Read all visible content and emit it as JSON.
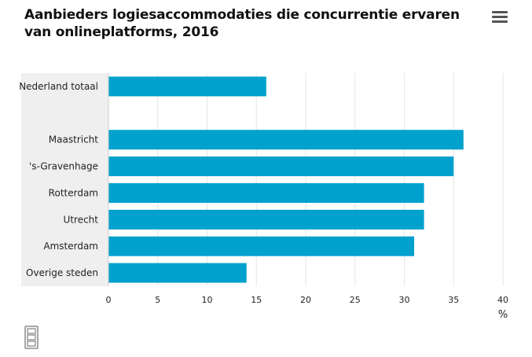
{
  "title": "Aanbieders logiesaccommodaties die concurrentie ervaren van onlineplatforms, 2016",
  "icons": {
    "menu": "hamburger-menu-icon",
    "logo": "cbs-logo-icon"
  },
  "colors": {
    "bar": "#00a1cd",
    "label_panel": "#efefef",
    "grid": "#e6e6e6"
  },
  "chart_data": {
    "type": "bar",
    "orientation": "horizontal",
    "categories": [
      "Nederland totaal",
      "",
      "Maastricht",
      "'s-Gravenhage",
      "Rotterdam",
      "Utrecht",
      "Amsterdam",
      "Overige steden"
    ],
    "values": [
      16,
      null,
      36,
      35,
      32,
      32,
      31,
      14
    ],
    "xlim": [
      0,
      40
    ],
    "xticks": [
      "0",
      "5",
      "10",
      "15",
      "20",
      "25",
      "30",
      "35",
      "40"
    ],
    "xlabel": "%",
    "grid": true
  }
}
